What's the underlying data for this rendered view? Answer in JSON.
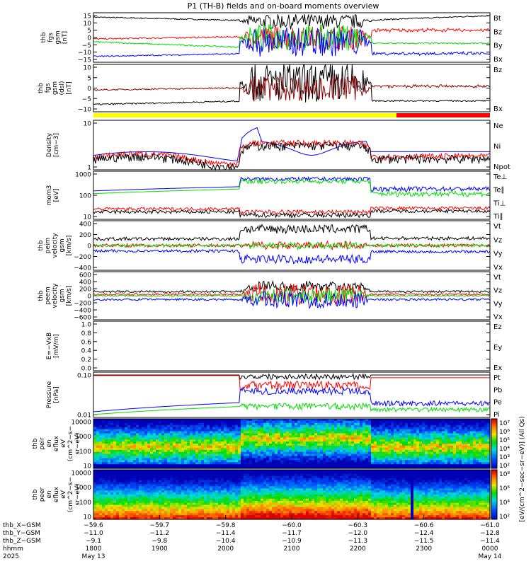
{
  "title": "P1 (TH-B) fields and on-board moments overview",
  "colors": {
    "black": "#000000",
    "red": "#ff0000",
    "green": "#00dd00",
    "blue": "#0000ff",
    "yellow": "#ffff00",
    "darkred": "#8b0000"
  },
  "chart_data": [
    {
      "type": "line",
      "ylabel": [
        "thb",
        "fgs",
        "gsm",
        "[nT]"
      ],
      "yticks": [
        "15",
        "10",
        "5",
        "0",
        "−5",
        "−10",
        "−15"
      ],
      "legend": [
        {
          "name": "Bt",
          "color": "#000000"
        },
        {
          "name": "Bz",
          "color": "#ff0000"
        },
        {
          "name": "By",
          "color": "#00dd00"
        },
        {
          "name": "Bx",
          "color": "#0000ff"
        }
      ]
    },
    {
      "type": "line",
      "ylabel": [
        "thb",
        "fgs",
        "gsm",
        "(dsl)",
        "[nT]"
      ],
      "yticks": [
        "10",
        "5",
        "0",
        "−5",
        "−10"
      ],
      "legend": [
        {
          "name": "Bz",
          "color": "#8b0000"
        },
        {
          "name": "Bx",
          "color": "#000000"
        }
      ]
    },
    {
      "type": "line",
      "ylabel": [
        "Density",
        "[cm−3]"
      ],
      "yticks": [
        "10",
        "1"
      ],
      "legend": [
        {
          "name": "Ne",
          "color": "#ff0000"
        },
        {
          "name": "Ni",
          "color": "#000000"
        },
        {
          "name": "Npot",
          "color": "#0000ff"
        }
      ]
    },
    {
      "type": "line",
      "ylabel": [
        "mom3",
        "[eV]"
      ],
      "yticks": [
        "1000",
        "100",
        "10"
      ],
      "legend": [
        {
          "name": "Te⊥",
          "color": "#ff0000"
        },
        {
          "name": "Te∥",
          "color": "#000000"
        },
        {
          "name": "Ti⊥",
          "color": "#0000ff"
        },
        {
          "name": "Ti∥",
          "color": "#00dd00"
        }
      ]
    },
    {
      "type": "line",
      "ylabel": [
        "thb",
        "peim",
        "velocity",
        "gsm",
        "[km/s]"
      ],
      "yticks": [
        "400",
        "200",
        "0",
        "−200",
        "−400"
      ],
      "legend": [
        {
          "name": "Vt",
          "color": "#000000"
        },
        {
          "name": "Vz",
          "color": "#ff0000"
        },
        {
          "name": "Vy",
          "color": "#00dd00"
        },
        {
          "name": "Vx",
          "color": "#0000ff"
        }
      ]
    },
    {
      "type": "line",
      "ylabel": [
        "thb",
        "peem",
        "velocity",
        "gsm",
        "[km/s]"
      ],
      "yticks": [
        "600",
        "400",
        "200",
        "0",
        "−200",
        "−400",
        "−600"
      ],
      "legend": [
        {
          "name": "Vt",
          "color": "#000000"
        },
        {
          "name": "Vz",
          "color": "#ff0000"
        },
        {
          "name": "Vy",
          "color": "#00dd00"
        },
        {
          "name": "Vx",
          "color": "#0000ff"
        }
      ]
    },
    {
      "type": "line",
      "ylabel": [
        "E=−VxB",
        "[mV/m]"
      ],
      "yticks": [
        "1.0",
        "0.8",
        "0.6",
        "0.4",
        "0.2",
        "0.0"
      ],
      "ylim": [
        0,
        1
      ],
      "legend": [
        {
          "name": "Ez",
          "color": "#ff0000"
        },
        {
          "name": "Ey",
          "color": "#00dd00"
        },
        {
          "name": "Ex",
          "color": "#0000ff"
        }
      ]
    },
    {
      "type": "line",
      "ylabel": [
        "Pressure",
        "[nPa]"
      ],
      "yticks": [
        "0.10",
        "0.01"
      ],
      "legend": [
        {
          "name": "Pt",
          "color": "#000000"
        },
        {
          "name": "Pb",
          "color": "#ff0000"
        },
        {
          "name": "Pe",
          "color": "#00dd00"
        },
        {
          "name": "Pi",
          "color": "#0000ff"
        }
      ]
    },
    {
      "type": "heatmap",
      "ylabel": [
        "thb",
        "peir",
        "en",
        "eflux",
        "eV",
        "(cm^2−s−",
        "sr−eV)"
      ],
      "yticks": [
        "10000",
        "1000",
        "100",
        "10"
      ],
      "colorbar": {
        "labels": [
          "10⁷",
          "10⁶",
          "10⁵",
          "10⁴",
          "10³",
          "10²"
        ],
        "title": "[eV/(cm^2−sec−sr−eV)] (All Qs)"
      }
    },
    {
      "type": "heatmap",
      "ylabel": [
        "thb",
        "peer",
        "en",
        "eflux",
        "eV",
        "(cm^2−s−",
        "sr−eV)"
      ],
      "yticks": [
        "10000",
        "1000",
        "100",
        "10"
      ],
      "colorbar": {
        "labels": [
          "10⁸",
          "10⁶",
          "10⁴",
          "10²"
        ]
      }
    }
  ],
  "xaxis": {
    "rows": [
      {
        "label": "thb_X−GSM",
        "values": [
          "−59.6",
          "−59.7",
          "−59.8",
          "−60.0",
          "−60.3",
          "−60.6",
          "−61.0"
        ]
      },
      {
        "label": "thb_Y−GSM",
        "values": [
          "−11.0",
          "−11.2",
          "−11.4",
          "−11.7",
          "−12.0",
          "−12.4",
          "−12.8"
        ]
      },
      {
        "label": "thb_Z−GSM",
        "values": [
          "−9.1",
          "−9.8",
          "−10.4",
          "−10.9",
          "−11.3",
          "−11.5",
          "−11.4"
        ]
      },
      {
        "label": "hhmm",
        "values": [
          "1800",
          "1900",
          "2000",
          "2100",
          "2200",
          "2300",
          "0000"
        ]
      },
      {
        "label": "2025",
        "values": [
          "May 13",
          "",
          "",
          "",
          "",
          "",
          "May 14"
        ]
      }
    ]
  }
}
